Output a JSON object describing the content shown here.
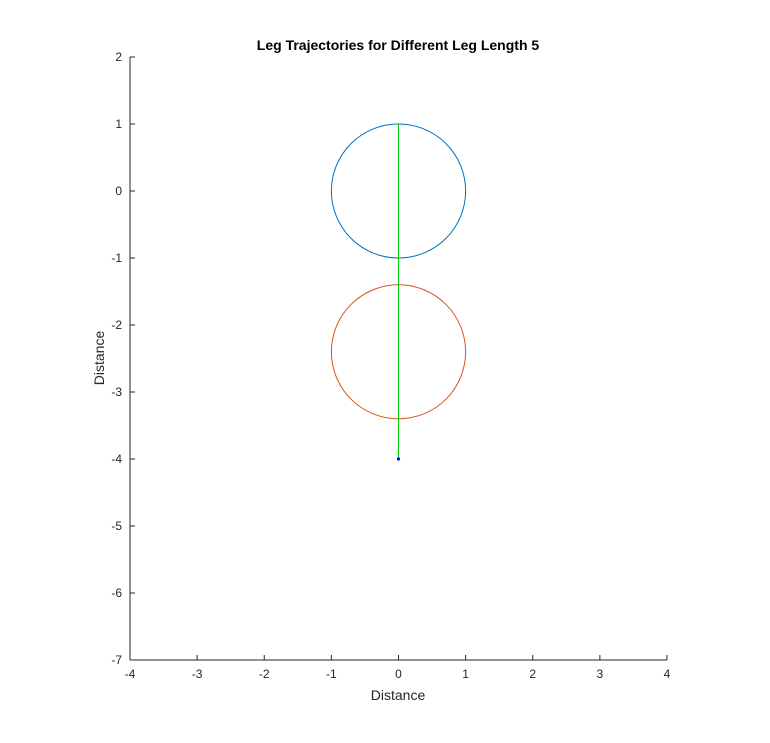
{
  "chart_data": {
    "type": "line",
    "title": "Leg Trajectories for Different Leg Length 5",
    "xlabel": "Distance",
    "ylabel": "Distance",
    "xlim": [
      -4,
      4
    ],
    "ylim": [
      -7,
      2
    ],
    "xticks": [
      -4,
      -3,
      -2,
      -1,
      0,
      1,
      2,
      3,
      4
    ],
    "yticks": [
      -7,
      -6,
      -5,
      -4,
      -3,
      -2,
      -1,
      0,
      1,
      2
    ],
    "grid": false,
    "legend": "none",
    "series": [
      {
        "kind": "circle",
        "center": [
          0,
          0
        ],
        "radius": 1,
        "color": "#0072bd"
      },
      {
        "kind": "circle",
        "center": [
          0,
          -2.4
        ],
        "radius": 1,
        "color": "#d95319"
      },
      {
        "kind": "segment",
        "x": [
          0,
          0
        ],
        "y": [
          1,
          -4
        ],
        "color": "#00cc00"
      },
      {
        "kind": "point",
        "x": 0,
        "y": -4,
        "color": "#0000ff"
      }
    ]
  }
}
